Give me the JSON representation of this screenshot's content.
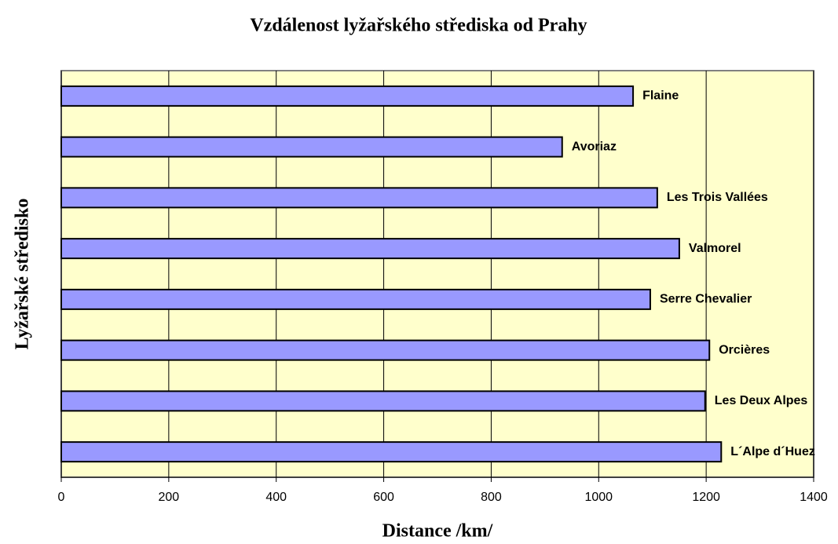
{
  "chart_data": {
    "type": "barh",
    "title": "Vzdálenost lyžařského střediska od Prahy",
    "x_label": "Distance /km/",
    "y_label": "Lyžařské středisko",
    "categories": [
      "Flaine",
      "Avoriaz",
      "Les Trois Vallées",
      "Valmorel",
      "Serre Chevalier",
      "Orcières",
      "Les Deux Alpes",
      "L´Alpe d´Huez"
    ],
    "values": [
      1064,
      932,
      1109,
      1150,
      1096,
      1206,
      1198,
      1228
    ],
    "color": "#9999ff",
    "xlim": [
      0,
      1400
    ],
    "xticks": [
      0,
      200,
      400,
      600,
      800,
      1000,
      1200,
      1400
    ],
    "grid": true
  }
}
